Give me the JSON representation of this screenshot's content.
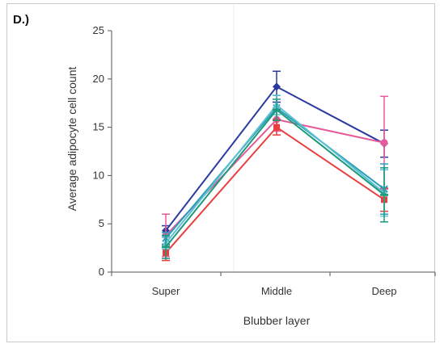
{
  "panel_label": "D.)",
  "chart_data": {
    "type": "line",
    "title": "",
    "xlabel": "Blubber layer",
    "ylabel": "Average adipocyte cell count",
    "categories": [
      "Super",
      "Middle",
      "Deep"
    ],
    "ylim": [
      0,
      25
    ],
    "yticks": [
      0,
      5,
      10,
      15,
      20,
      25
    ],
    "grid": false,
    "legend": "none",
    "series": [
      {
        "color": "#2b3aa0",
        "marker": "diamond",
        "values": [
          4.3,
          19.2,
          13.3
        ],
        "errors": [
          0.5,
          1.6,
          1.4
        ]
      },
      {
        "color": "#e55a9a",
        "marker": "circle",
        "values": [
          3.8,
          15.8,
          13.4
        ],
        "errors": [
          2.2,
          1.2,
          4.8
        ]
      },
      {
        "color": "#e83e3e",
        "marker": "square",
        "values": [
          2.0,
          15.0,
          7.5
        ],
        "errors": [
          0.8,
          0.8,
          1.2
        ]
      },
      {
        "color": "#2aa0b8",
        "marker": "x",
        "values": [
          3.5,
          17.0,
          8.6
        ],
        "errors": [
          0.6,
          1.3,
          2.6
        ]
      },
      {
        "color": "#5cc0d4",
        "marker": "triangle",
        "values": [
          3.0,
          17.3,
          8.2
        ],
        "errors": [
          0.6,
          1.0,
          2.4
        ]
      },
      {
        "color": "#1e9a7a",
        "marker": "dash",
        "values": [
          2.6,
          16.8,
          8.0
        ],
        "errors": [
          1.2,
          1.1,
          2.8
        ]
      }
    ]
  }
}
